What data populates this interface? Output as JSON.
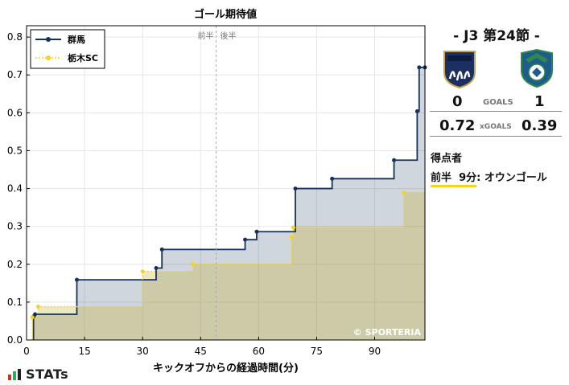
{
  "chart_data": {
    "type": "line",
    "title": "ゴール期待値",
    "xlabel": "キックオフからの経過時間(分)",
    "ylabel": "",
    "xlim": [
      0,
      103
    ],
    "ylim": [
      0,
      0.83
    ],
    "xticks": [
      0,
      15,
      30,
      45,
      60,
      75,
      90
    ],
    "yticks": [
      0.0,
      0.1,
      0.2,
      0.3,
      0.4,
      0.5,
      0.6,
      0.7,
      0.8
    ],
    "grid": true,
    "legend": "top-left",
    "halftime_labels": [
      "前半",
      "後半"
    ],
    "halftime_x": 49,
    "watermark": "© SPORTERIA",
    "series": [
      {
        "name": "群馬",
        "color": "#14325a",
        "points": [
          [
            1.8,
            0.062
          ],
          [
            2.2,
            0.068
          ],
          [
            13,
            0.159
          ],
          [
            33.5,
            0.19
          ],
          [
            35,
            0.239
          ],
          [
            56.5,
            0.265
          ],
          [
            59.5,
            0.286
          ],
          [
            69.5,
            0.4
          ],
          [
            79,
            0.426
          ],
          [
            95,
            0.475
          ],
          [
            101,
            0.604
          ],
          [
            101.5,
            0.72
          ],
          [
            103,
            0.72
          ]
        ]
      },
      {
        "name": "栃木SC",
        "color": "#f7d21e",
        "points": [
          [
            1.5,
            0.06
          ],
          [
            3,
            0.088
          ],
          [
            30,
            0.181
          ],
          [
            43,
            0.2
          ],
          [
            68.5,
            0.272
          ],
          [
            69,
            0.297
          ],
          [
            97.5,
            0.39
          ]
        ]
      }
    ]
  },
  "match": {
    "title": "- J3 第24節 -",
    "home_score": "0",
    "away_score": "1",
    "goals_label": "GOALS",
    "home_xg": "0.72",
    "away_xg": "0.39",
    "xg_label": "xGOALS",
    "home_crest": "gunma-crest-icon",
    "away_crest": "tochigi-crest-icon"
  },
  "scorers": {
    "heading": "得点者",
    "half": "前半",
    "minute": "9分",
    "name": ": オウンゴール"
  },
  "brand": {
    "logo_text": "STATs",
    "logo_icon": "bar-chart-icon"
  }
}
